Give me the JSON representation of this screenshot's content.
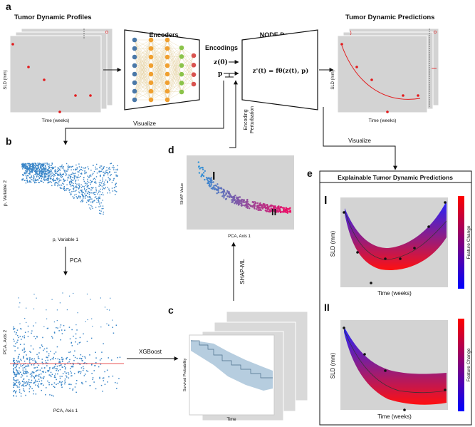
{
  "panel_labels": {
    "a": "a",
    "b": "b",
    "c": "c",
    "d": "d",
    "e": "e"
  },
  "panel_a": {
    "profiles_title": "Tumor Dynamic Profiles",
    "profiles_ylabel": "SLD (mm)",
    "profiles_xlabel": "Time (weeks)",
    "encoders_label": "Encoders",
    "encodings_label": "Encodings",
    "z0_label": "z(0)",
    "p_label": "p",
    "decoder_label": "NODE Decoder",
    "ode_label": "z'(t) = fθ(z(t), p)",
    "predictions_title": "Tumor Dynamic Predictions",
    "predictions_ylabel": "SLD (mm)",
    "predictions_xlabel": "Time (weeks)",
    "perturbation_label_1": "Encoding",
    "perturbation_label_2": "Perturbation",
    "visualize_left": "Visualize",
    "visualize_right": "Visualize"
  },
  "panel_b": {
    "top_ylabel": "p, Variable 2",
    "top_xlabel": "p, Variable 1",
    "pca_label": "PCA",
    "bottom_ylabel": "PCA, Axis 2",
    "bottom_xlabel": "PCA, Axis 1",
    "xgboost_label": "XGBoost"
  },
  "panel_c": {
    "ylabel": "Survival Probability",
    "xlabel": "Time",
    "shapml_label": "SHAP-ML"
  },
  "panel_d": {
    "ylabel": "SHAP Value",
    "xlabel": "PCA, Axis 1",
    "cluster_I": "I",
    "cluster_II": "II"
  },
  "panel_e": {
    "title": "Explainable Tumor Dynamic Predictions",
    "plot1_roman": "I",
    "plot2_roman": "II",
    "ylabel": "SLD (mm)",
    "xlabel": "Time (weeks)",
    "colorbar_label": "Feature Change",
    "colorbar_top": "#ff0000",
    "colorbar_bottom": "#0000ff"
  },
  "colors": {
    "plot_bg": "#d3d3d3",
    "point_red": "#e31a1c",
    "point_blue": "#3a86c8",
    "survival_band": "#a9c4d9",
    "node_blue": "#4a78a8",
    "node_orange": "#f0a030",
    "node_green": "#8bc34a",
    "node_red": "#d9534f"
  }
}
